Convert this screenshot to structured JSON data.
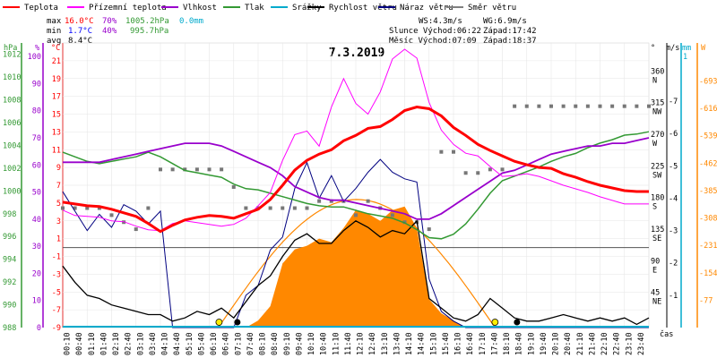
{
  "chart_data": {
    "type": "line",
    "title": "7.3.2019",
    "legend": [
      {
        "label": "Teplota",
        "color": "#ff0000"
      },
      {
        "label": "Přízemní teplota",
        "color": "#ff00ff"
      },
      {
        "label": "Vlhkost",
        "color": "#9900cc"
      },
      {
        "label": "Tlak",
        "color": "#339933"
      },
      {
        "label": "Srážky",
        "color": "#00aacc"
      },
      {
        "label": "Rychlost větru",
        "color": "#000000"
      },
      {
        "label": "Náraz větru",
        "color": "#000080"
      },
      {
        "label": "Směr větru",
        "color": "#808080"
      }
    ],
    "stats": {
      "max_label": "max",
      "min_label": "min",
      "avg_label": "avg",
      "max_temp": "16.0°C",
      "max_hum": "70%",
      "max_press": "1005.2hPa",
      "max_rain": "0.0mm",
      "min_temp": "1.7°C",
      "min_hum": "40%",
      "min_press": "995.7hPa",
      "avg_temp": "8.4°C"
    },
    "wind_info": {
      "ws": "WS:4.3m/s",
      "wg": "WG:6.9m/s",
      "sun": "Slunce Východ:06:22",
      "sun_set": "Západ:17:42",
      "moon": "Měsíc  Východ:07:09",
      "moon_set": "Západ:18:37"
    },
    "axes": {
      "hpa_title": "hPa",
      "hum_title": "%",
      "temp_title": "°C",
      "hpa_ticks": [
        "1012",
        "1010",
        "1008",
        "1006",
        "1004",
        "1002",
        "1000",
        "998",
        "996",
        "994",
        "992",
        "990",
        "988"
      ],
      "hum_ticks": [
        "100",
        "90",
        "80",
        "70",
        "60",
        "50",
        "40",
        "30",
        "20",
        "10",
        "0"
      ],
      "temp_ticks": [
        "21",
        "19",
        "17",
        "15",
        "13",
        "11",
        "9",
        "7",
        "5",
        "3",
        "1",
        "-1",
        "-3",
        "-5",
        "-7",
        "-9"
      ],
      "dir_title": "°",
      "dir_ticks": [
        [
          "360",
          "N"
        ],
        [
          "315",
          "NW"
        ],
        [
          "270",
          "W"
        ],
        [
          "225",
          "SW"
        ],
        [
          "180",
          "S"
        ],
        [
          "135",
          "SE"
        ],
        [
          "90",
          "E"
        ],
        [
          "45",
          "NE"
        ]
      ],
      "ms_title": "m/s",
      "mm_title": "mm",
      "w_title": "W",
      "ms_ticks": [
        "7",
        "6",
        "5",
        "4",
        "3",
        "2",
        "1"
      ],
      "mm_top": "1",
      "mm_zero": "0",
      "w_ticks": [
        "693",
        "616",
        "539",
        "462",
        "385",
        "308",
        "231",
        "154",
        "77"
      ],
      "x_title": "čas",
      "x_ticks": [
        "00:10",
        "00:40",
        "01:10",
        "01:40",
        "02:10",
        "02:40",
        "03:10",
        "03:40",
        "04:10",
        "04:40",
        "05:10",
        "05:40",
        "06:10",
        "06:40",
        "07:10",
        "07:40",
        "08:10",
        "08:40",
        "09:10",
        "09:40",
        "10:10",
        "10:40",
        "11:10",
        "11:40",
        "12:10",
        "12:40",
        "13:10",
        "13:40",
        "14:10",
        "14:40",
        "15:10",
        "15:40",
        "16:10",
        "16:40",
        "17:10",
        "17:40",
        "18:10",
        "18:40",
        "19:10",
        "19:40",
        "20:10",
        "20:40",
        "21:10",
        "21:40",
        "22:10",
        "22:40",
        "23:10",
        "23:40"
      ]
    },
    "hours": [
      0,
      0.5,
      1,
      1.5,
      2,
      2.5,
      3,
      3.5,
      4,
      4.5,
      5,
      5.5,
      6,
      6.5,
      7,
      7.5,
      8,
      8.5,
      9,
      9.5,
      10,
      10.5,
      11,
      11.5,
      12,
      12.5,
      13,
      13.5,
      14,
      14.5,
      15,
      15.5,
      16,
      16.5,
      17,
      17.5,
      18,
      18.5,
      19,
      19.5,
      20,
      20.5,
      21,
      21.5,
      22,
      22.5,
      23,
      23.5,
      24
    ],
    "series": [
      {
        "name": "Teplota",
        "unit": "°C",
        "color": "#ff0000",
        "values": [
          5.1,
          4.9,
          4.7,
          4.6,
          4.3,
          3.9,
          3.5,
          2.7,
          1.8,
          2.5,
          3.1,
          3.4,
          3.6,
          3.5,
          3.3,
          3.8,
          4.3,
          5.4,
          7.0,
          8.7,
          9.8,
          10.5,
          11.0,
          12.0,
          12.6,
          13.4,
          13.6,
          14.4,
          15.4,
          15.8,
          15.6,
          14.8,
          13.5,
          12.6,
          11.6,
          10.9,
          10.3,
          9.7,
          9.3,
          9.0,
          8.9,
          8.3,
          7.9,
          7.4,
          7.0,
          6.7,
          6.4,
          6.3,
          6.3
        ]
      },
      {
        "name": "Přízemní teplota",
        "unit": "°C",
        "color": "#ff00ff",
        "values": [
          4.2,
          3.6,
          3.5,
          3.4,
          3.0,
          2.9,
          2.4,
          2.0,
          1.9,
          2.7,
          3.0,
          2.8,
          2.6,
          2.4,
          2.6,
          3.3,
          4.7,
          6.2,
          9.8,
          12.7,
          13.1,
          11.4,
          15.8,
          19.0,
          16.2,
          15.0,
          17.5,
          21.2,
          22.3,
          21.3,
          16.3,
          13.2,
          11.6,
          10.6,
          10.3,
          9.1,
          8.0,
          8.1,
          8.3,
          8.0,
          7.5,
          7.0,
          6.6,
          6.2,
          5.7,
          5.3,
          4.9,
          4.9,
          4.9
        ]
      },
      {
        "name": "Vlhkost",
        "unit": "%",
        "color": "#9900cc",
        "values": [
          61,
          61,
          61,
          61,
          62,
          63,
          64,
          65,
          66,
          67,
          68,
          68,
          68,
          67,
          65,
          63,
          61,
          59,
          56,
          52,
          50,
          48,
          47,
          47,
          46,
          45,
          44,
          43,
          42,
          40,
          40,
          42,
          45,
          48,
          51,
          54,
          57,
          58,
          60,
          62,
          64,
          65,
          66,
          67,
          67,
          68,
          68,
          69,
          70
        ]
      },
      {
        "name": "Tlak",
        "unit": "hPa",
        "color": "#339933",
        "values": [
          1003.4,
          1003.0,
          1002.6,
          1002.4,
          1002.6,
          1002.8,
          1003.0,
          1003.4,
          1003.0,
          1002.4,
          1001.8,
          1001.6,
          1001.4,
          1001.2,
          1000.6,
          1000.2,
          1000.1,
          999.8,
          999.5,
          999.2,
          998.9,
          998.7,
          998.6,
          998.6,
          998.3,
          998.0,
          997.8,
          997.6,
          997.2,
          996.6,
          995.9,
          995.8,
          996.2,
          997.1,
          998.4,
          999.8,
          1000.9,
          1001.3,
          1001.7,
          1002.1,
          1002.6,
          1003.0,
          1003.3,
          1003.8,
          1004.2,
          1004.5,
          1004.9,
          1005.0,
          1005.2
        ]
      },
      {
        "name": "Rychlost větru",
        "unit": "m/s",
        "color": "#000000",
        "values": [
          1.9,
          1.4,
          1.0,
          0.9,
          0.7,
          0.6,
          0.5,
          0.4,
          0.4,
          0.2,
          0.3,
          0.5,
          0.4,
          0.6,
          0.3,
          0.8,
          1.3,
          1.6,
          2.2,
          2.7,
          2.9,
          2.6,
          2.6,
          3.0,
          3.3,
          3.1,
          2.8,
          3.0,
          2.9,
          3.3,
          0.9,
          0.6,
          0.3,
          0.2,
          0.4,
          0.9,
          0.6,
          0.3,
          0.2,
          0.2,
          0.3,
          0.4,
          0.3,
          0.2,
          0.3,
          0.2,
          0.3,
          0.1,
          0.3
        ]
      },
      {
        "name": "Náraz větru",
        "unit": "m/s",
        "color": "#000080",
        "values": [
          4.2,
          3.6,
          3.0,
          3.5,
          3.1,
          3.8,
          3.6,
          3.2,
          3.6,
          0.0,
          0.0,
          0.0,
          0.0,
          0.0,
          0.0,
          1.0,
          1.3,
          2.4,
          2.8,
          4.3,
          5.1,
          4.0,
          4.7,
          3.9,
          4.3,
          4.8,
          5.2,
          4.8,
          4.6,
          4.5,
          1.5,
          0.5,
          0.2,
          0.0,
          0.0,
          0.0,
          0.0,
          0.0,
          0.0,
          0.0,
          0.0,
          0.0,
          0.0,
          0.0,
          0.0,
          0.0,
          0.0,
          0.0,
          0.0
        ]
      },
      {
        "name": "Sluneční svit",
        "unit": "W",
        "color": "#ff8800",
        "values": [
          0,
          0,
          0,
          0,
          0,
          0,
          0,
          0,
          0,
          0,
          0,
          0,
          0,
          0,
          0,
          0,
          20,
          60,
          180,
          220,
          230,
          250,
          240,
          280,
          330,
          320,
          300,
          330,
          340,
          280,
          80,
          40,
          20,
          0,
          0,
          0,
          0,
          0,
          0,
          0,
          0,
          0,
          0,
          0,
          0,
          0,
          0,
          0,
          0
        ]
      }
    ],
    "theoretical_sun": {
      "rise_h": 6.37,
      "set_h": 17.7,
      "peak_w": 360
    },
    "wind_direction_deg": [
      170,
      170,
      170,
      170,
      160,
      150,
      140,
      170,
      225,
      225,
      225,
      225,
      225,
      225,
      200,
      170,
      170,
      170,
      170,
      170,
      170,
      180,
      180,
      180,
      160,
      180,
      170,
      160,
      150,
      150,
      140,
      250,
      250,
      220,
      220,
      225,
      225,
      315,
      315,
      315,
      315,
      315,
      315,
      315,
      315,
      315,
      315,
      315,
      315
    ],
    "sun_markers": [
      {
        "h": 6.4,
        "kind": "sunrise"
      },
      {
        "h": 17.7,
        "kind": "sunset"
      }
    ],
    "moon_markers": [
      {
        "h": 7.15,
        "kind": "moonrise"
      },
      {
        "h": 18.6,
        "kind": "moonset"
      }
    ]
  }
}
